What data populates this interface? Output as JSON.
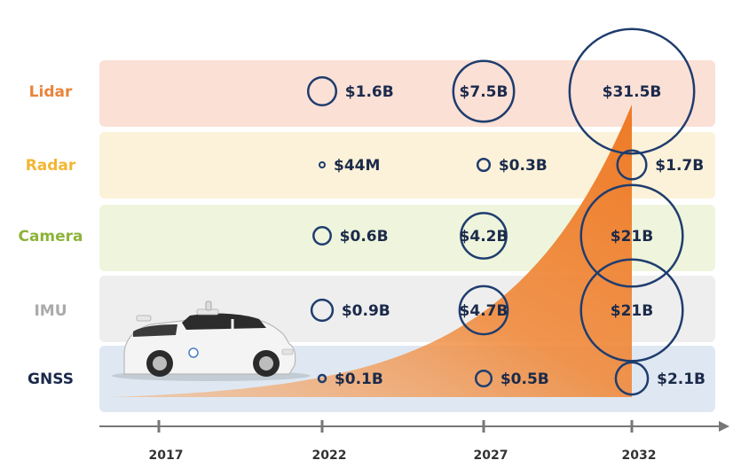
{
  "chart_data": {
    "type": "bubble",
    "x_ticks": [
      "2017",
      "2022",
      "2027",
      "2032"
    ],
    "rows": [
      {
        "name": "Lidar",
        "color": "#e8843a",
        "band": "#fbe0d6"
      },
      {
        "name": "Radar",
        "color": "#f2b632",
        "band": "#fcf2d9"
      },
      {
        "name": "Camera",
        "color": "#8db33a",
        "band": "#eef5dc"
      },
      {
        "name": "IMU",
        "color": "#aaaaaa",
        "band": "#eeeeee"
      },
      {
        "name": "GNSS",
        "color": "#1b2a4a",
        "band": "#dfe8f2"
      }
    ],
    "points": [
      {
        "row": "Lidar",
        "year": "2022",
        "value_usd_b": 1.6,
        "label": "$1.6B"
      },
      {
        "row": "Lidar",
        "year": "2027",
        "value_usd_b": 7.5,
        "label": "$7.5B"
      },
      {
        "row": "Lidar",
        "year": "2032",
        "value_usd_b": 31.5,
        "label": "$31.5B"
      },
      {
        "row": "Radar",
        "year": "2022",
        "value_usd_b": 0.044,
        "label": "$44M"
      },
      {
        "row": "Radar",
        "year": "2027",
        "value_usd_b": 0.3,
        "label": "$0.3B"
      },
      {
        "row": "Radar",
        "year": "2032",
        "value_usd_b": 1.7,
        "label": "$1.7B"
      },
      {
        "row": "Camera",
        "year": "2022",
        "value_usd_b": 0.6,
        "label": "$0.6B"
      },
      {
        "row": "Camera",
        "year": "2027",
        "value_usd_b": 4.2,
        "label": "$4.2B"
      },
      {
        "row": "Camera",
        "year": "2032",
        "value_usd_b": 21,
        "label": "$21B"
      },
      {
        "row": "IMU",
        "year": "2022",
        "value_usd_b": 0.9,
        "label": "$0.9B"
      },
      {
        "row": "IMU",
        "year": "2027",
        "value_usd_b": 4.7,
        "label": "$4.7B"
      },
      {
        "row": "IMU",
        "year": "2032",
        "value_usd_b": 21,
        "label": "$21B"
      },
      {
        "row": "GNSS",
        "year": "2022",
        "value_usd_b": 0.1,
        "label": "$0.1B"
      },
      {
        "row": "GNSS",
        "year": "2027",
        "value_usd_b": 0.5,
        "label": "$0.5B"
      },
      {
        "row": "GNSS",
        "year": "2032",
        "value_usd_b": 2.1,
        "label": "$2.1B"
      }
    ],
    "growth_area_color": "#f08a3c",
    "bubble_color": "#1f3d6e",
    "illustration": "self-driving-car"
  }
}
